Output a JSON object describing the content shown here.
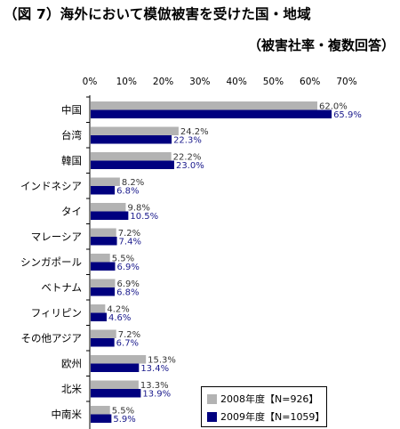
{
  "header": {
    "title": "（図 7）海外において模倣被害を受けた国・地域",
    "subtitle": "（被害社率・複数回答）"
  },
  "colors": {
    "series_2008": "#b3b3b3",
    "series_2009": "#00007f",
    "label_2009": "#1a1a8c"
  },
  "chart_data": {
    "type": "bar",
    "orientation": "horizontal",
    "categories": [
      "中国",
      "台湾",
      "韓国",
      "インドネシア",
      "タイ",
      "マレーシア",
      "シンガポール",
      "ベトナム",
      "フィリピン",
      "その他アジア",
      "欧州",
      "北米",
      "中南米"
    ],
    "x_ticks": [
      "0%",
      "10%",
      "20%",
      "30%",
      "40%",
      "50%",
      "60%",
      "70%"
    ],
    "xlim": [
      0,
      70
    ],
    "series": [
      {
        "name": "2008年度【N=926】",
        "values": [
          62.0,
          24.2,
          22.2,
          8.2,
          9.8,
          7.2,
          5.5,
          6.9,
          4.2,
          7.2,
          15.3,
          13.3,
          5.5
        ],
        "labels": [
          "62.0%",
          "24.2%",
          "22.2%",
          "8.2%",
          "9.8%",
          "7.2%",
          "5.5%",
          "6.9%",
          "4.2%",
          "7.2%",
          "15.3%",
          "13.3%",
          "5.5%"
        ]
      },
      {
        "name": "2009年度【N=1059】",
        "values": [
          65.9,
          22.3,
          23.0,
          6.8,
          10.5,
          7.4,
          6.9,
          6.8,
          4.6,
          6.7,
          13.4,
          13.9,
          5.9
        ],
        "labels": [
          "65.9%",
          "22.3%",
          "23.0%",
          "6.8%",
          "10.5%",
          "7.4%",
          "6.9%",
          "6.8%",
          "4.6%",
          "6.7%",
          "13.4%",
          "13.9%",
          "5.9%"
        ]
      }
    ],
    "legend_position": "bottom-right",
    "grid": false
  }
}
